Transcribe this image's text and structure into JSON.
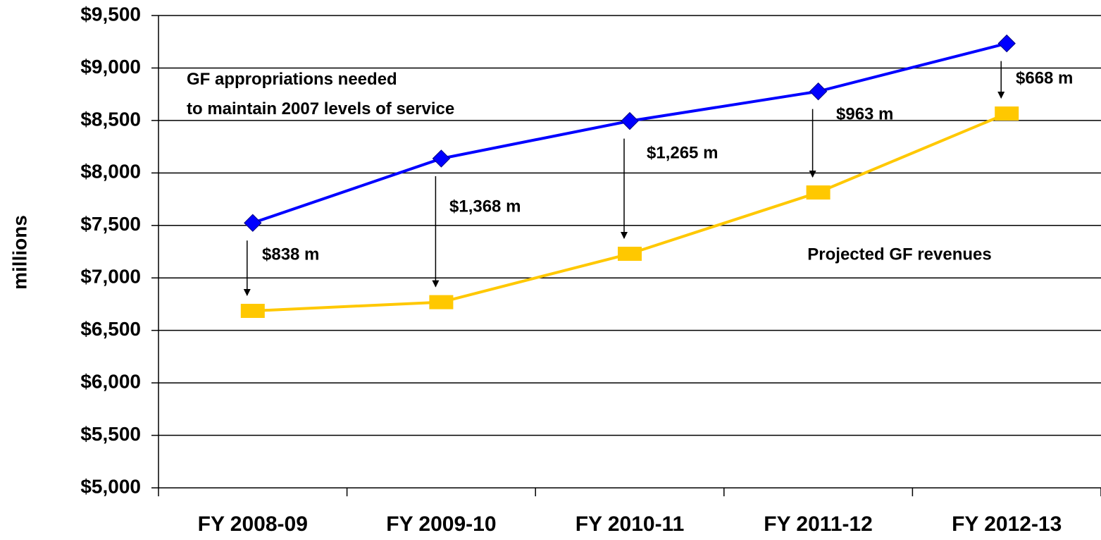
{
  "chart_data": {
    "type": "line",
    "y_axis_label": "millions",
    "categories": [
      "FY 2008-09",
      "FY 2009-10",
      "FY 2010-11",
      "FY 2011-12",
      "FY 2012-13"
    ],
    "series": [
      {
        "name": "GF appropriations needed\nto maintain 2007 levels of service",
        "color": "#0000ff",
        "marker": "diamond",
        "values": [
          7524,
          8137,
          8495,
          8777,
          9234
        ]
      },
      {
        "name": "Projected GF revenues",
        "color": "#ffc800",
        "marker": "square",
        "values": [
          6686,
          6769,
          7230,
          7814,
          8566
        ]
      }
    ],
    "gap_labels": [
      "$838 m",
      "$1,368 m",
      "$1,265 m",
      "$963 m",
      "$668 m"
    ],
    "ylim": [
      5000,
      9500
    ],
    "yticks": [
      {
        "value": 5000,
        "label": "$5,000"
      },
      {
        "value": 5500,
        "label": "$5,500"
      },
      {
        "value": 6000,
        "label": "$6,000"
      },
      {
        "value": 6500,
        "label": "$6,500"
      },
      {
        "value": 7000,
        "label": "$7,000"
      },
      {
        "value": 7500,
        "label": "$7,500"
      },
      {
        "value": 8000,
        "label": "$8,000"
      },
      {
        "value": 8500,
        "label": "$8,500"
      },
      {
        "value": 9000,
        "label": "$9,000"
      },
      {
        "value": 9500,
        "label": "$9,500"
      }
    ],
    "grid": true
  }
}
